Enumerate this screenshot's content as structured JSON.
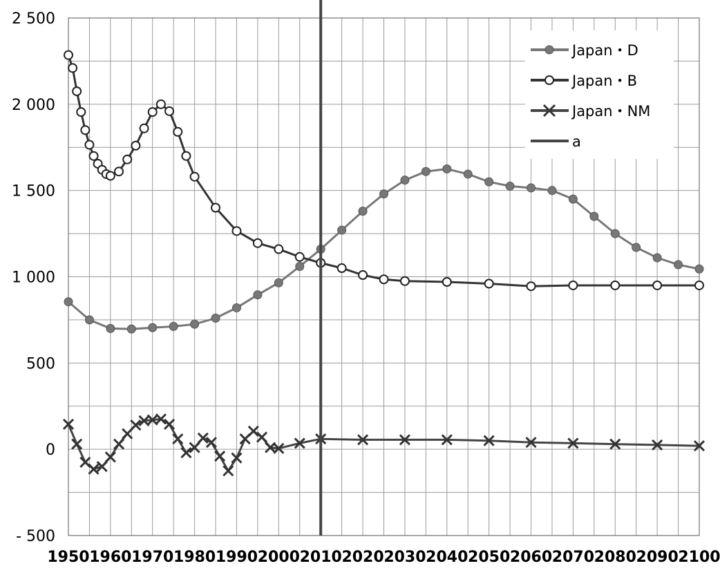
{
  "chart_data": {
    "type": "line",
    "title": "",
    "xlabel": "",
    "ylabel": "",
    "xlim": [
      1950,
      2100
    ],
    "ylim": [
      -500,
      2500
    ],
    "x_ticks": [
      "1950",
      "1960",
      "1970",
      "1980",
      "1990",
      "2000",
      "2010",
      "2020",
      "2030",
      "2040",
      "2050",
      "2060",
      "2070",
      "2080",
      "2090",
      "2100"
    ],
    "y_ticks": [
      "2 500",
      "2 000",
      "1 500",
      "1 000",
      "500",
      "0",
      "- 500"
    ],
    "y_tick_values": [
      2500,
      2000,
      1500,
      1000,
      500,
      0,
      -500
    ],
    "grid": true,
    "legend_position": "top-right",
    "vertical_line": {
      "name": "a",
      "x": 2010
    },
    "series": [
      {
        "name": "Japan・D",
        "marker": "filled-circle",
        "color": "#777777",
        "x": [
          1950,
          1955,
          1960,
          1965,
          1970,
          1975,
          1980,
          1985,
          1990,
          1995,
          2000,
          2005,
          2010,
          2015,
          2020,
          2025,
          2030,
          2035,
          2040,
          2045,
          2050,
          2055,
          2060,
          2065,
          2070,
          2075,
          2080,
          2085,
          2090,
          2095,
          2100
        ],
        "values": [
          855,
          750,
          700,
          697,
          705,
          712,
          725,
          760,
          820,
          895,
          965,
          1060,
          1160,
          1270,
          1380,
          1480,
          1560,
          1610,
          1625,
          1595,
          1550,
          1525,
          1515,
          1500,
          1450,
          1350,
          1250,
          1170,
          1110,
          1070,
          1045
        ]
      },
      {
        "name": "Japan・B",
        "marker": "open-circle",
        "color": "#333333",
        "x": [
          1950,
          1951,
          1952,
          1953,
          1954,
          1955,
          1956,
          1957,
          1958,
          1959,
          1960,
          1962,
          1964,
          1966,
          1968,
          1970,
          1972,
          1974,
          1976,
          1978,
          1980,
          1985,
          1990,
          1995,
          2000,
          2005,
          2010,
          2015,
          2020,
          2025,
          2030,
          2040,
          2050,
          2060,
          2070,
          2080,
          2090,
          2100
        ],
        "values": [
          2285,
          2210,
          2075,
          1955,
          1850,
          1765,
          1700,
          1655,
          1620,
          1595,
          1585,
          1610,
          1680,
          1760,
          1860,
          1955,
          2000,
          1960,
          1840,
          1700,
          1580,
          1400,
          1265,
          1195,
          1160,
          1115,
          1080,
          1050,
          1010,
          985,
          975,
          970,
          960,
          945,
          950,
          950,
          950,
          950
        ]
      },
      {
        "name": "Japan・NM",
        "marker": "x",
        "color": "#444444",
        "x": [
          1950,
          1952,
          1954,
          1956,
          1958,
          1960,
          1962,
          1964,
          1966,
          1968,
          1970,
          1972,
          1974,
          1976,
          1978,
          1980,
          1982,
          1984,
          1986,
          1988,
          1990,
          1992,
          1994,
          1996,
          1998,
          2000,
          2005,
          2010,
          2020,
          2030,
          2040,
          2050,
          2060,
          2070,
          2080,
          2090,
          2100
        ],
        "values": [
          145,
          30,
          -75,
          -115,
          -100,
          -45,
          30,
          90,
          140,
          165,
          170,
          175,
          145,
          60,
          -20,
          10,
          65,
          40,
          -40,
          -125,
          -50,
          60,
          105,
          70,
          10,
          5,
          35,
          60,
          55,
          55,
          55,
          50,
          40,
          35,
          30,
          25,
          20
        ]
      }
    ]
  }
}
